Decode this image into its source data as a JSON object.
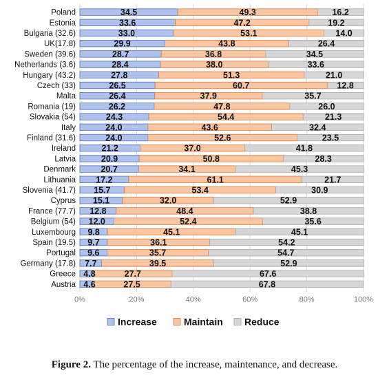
{
  "chart_data": {
    "type": "bar",
    "orientation": "horizontal",
    "stacked": true,
    "percent_stacked": true,
    "categories": [
      "Poland",
      "Estonia",
      "Bulgaria (32.6)",
      "UK(17.8)",
      "Sweden (39.6)",
      "Netherlands (3.6)",
      "Hungary (43.2)",
      "Czech (33)",
      "Malta",
      "Romania (19)",
      "Slovakia (54)",
      "Italy",
      "Finland (31.6)",
      "Ireland",
      "Latvia",
      "Denmark",
      "Lithuania",
      "Slovenia (41.7)",
      "Cyprus",
      "France (77.7)",
      "Belgium (54)",
      "Luxembourg",
      "Spain (19.5)",
      "Portugal",
      "Germany (17.8)",
      "Greece",
      "Austria"
    ],
    "series": [
      {
        "name": "Increase",
        "color": "#aec2eb",
        "border": "#4f6fbf",
        "values": [
          34.5,
          33.6,
          33.0,
          29.9,
          28.7,
          28.4,
          27.8,
          26.5,
          26.4,
          26.2,
          24.3,
          24.0,
          24.0,
          21.2,
          20.9,
          20.7,
          17.2,
          15.7,
          15.1,
          12.8,
          12.0,
          9.8,
          9.7,
          9.6,
          7.7,
          4.8,
          4.6
        ]
      },
      {
        "name": "Maintain",
        "color": "#f9c6a4",
        "border": "#e07b39",
        "values": [
          49.3,
          47.2,
          53.1,
          43.8,
          36.8,
          38.0,
          51.3,
          60.7,
          37.9,
          47.8,
          54.4,
          43.6,
          52.6,
          37.0,
          50.8,
          34.1,
          61.1,
          53.4,
          32.0,
          48.4,
          52.4,
          45.1,
          36.1,
          35.7,
          39.5,
          27.7,
          27.5
        ]
      },
      {
        "name": "Reduce",
        "color": "#d6d6d6",
        "border": "#a6a6a6",
        "values": [
          16.2,
          19.2,
          14.0,
          26.4,
          34.5,
          33.6,
          21.0,
          12.8,
          35.7,
          26.0,
          21.3,
          32.4,
          23.5,
          41.8,
          28.3,
          45.3,
          21.7,
          30.9,
          52.9,
          38.8,
          35.6,
          45.1,
          54.2,
          54.7,
          52.9,
          67.6,
          67.8
        ]
      }
    ],
    "x_ticks": [
      "0%",
      "20%",
      "40%",
      "60%",
      "80%",
      "100%"
    ],
    "xlim": [
      0,
      100
    ],
    "grid": true,
    "legend_position": "bottom"
  },
  "caption": {
    "label": "Figure 2.",
    "text": "The percentage of the increase, maintenance, and decrease."
  }
}
